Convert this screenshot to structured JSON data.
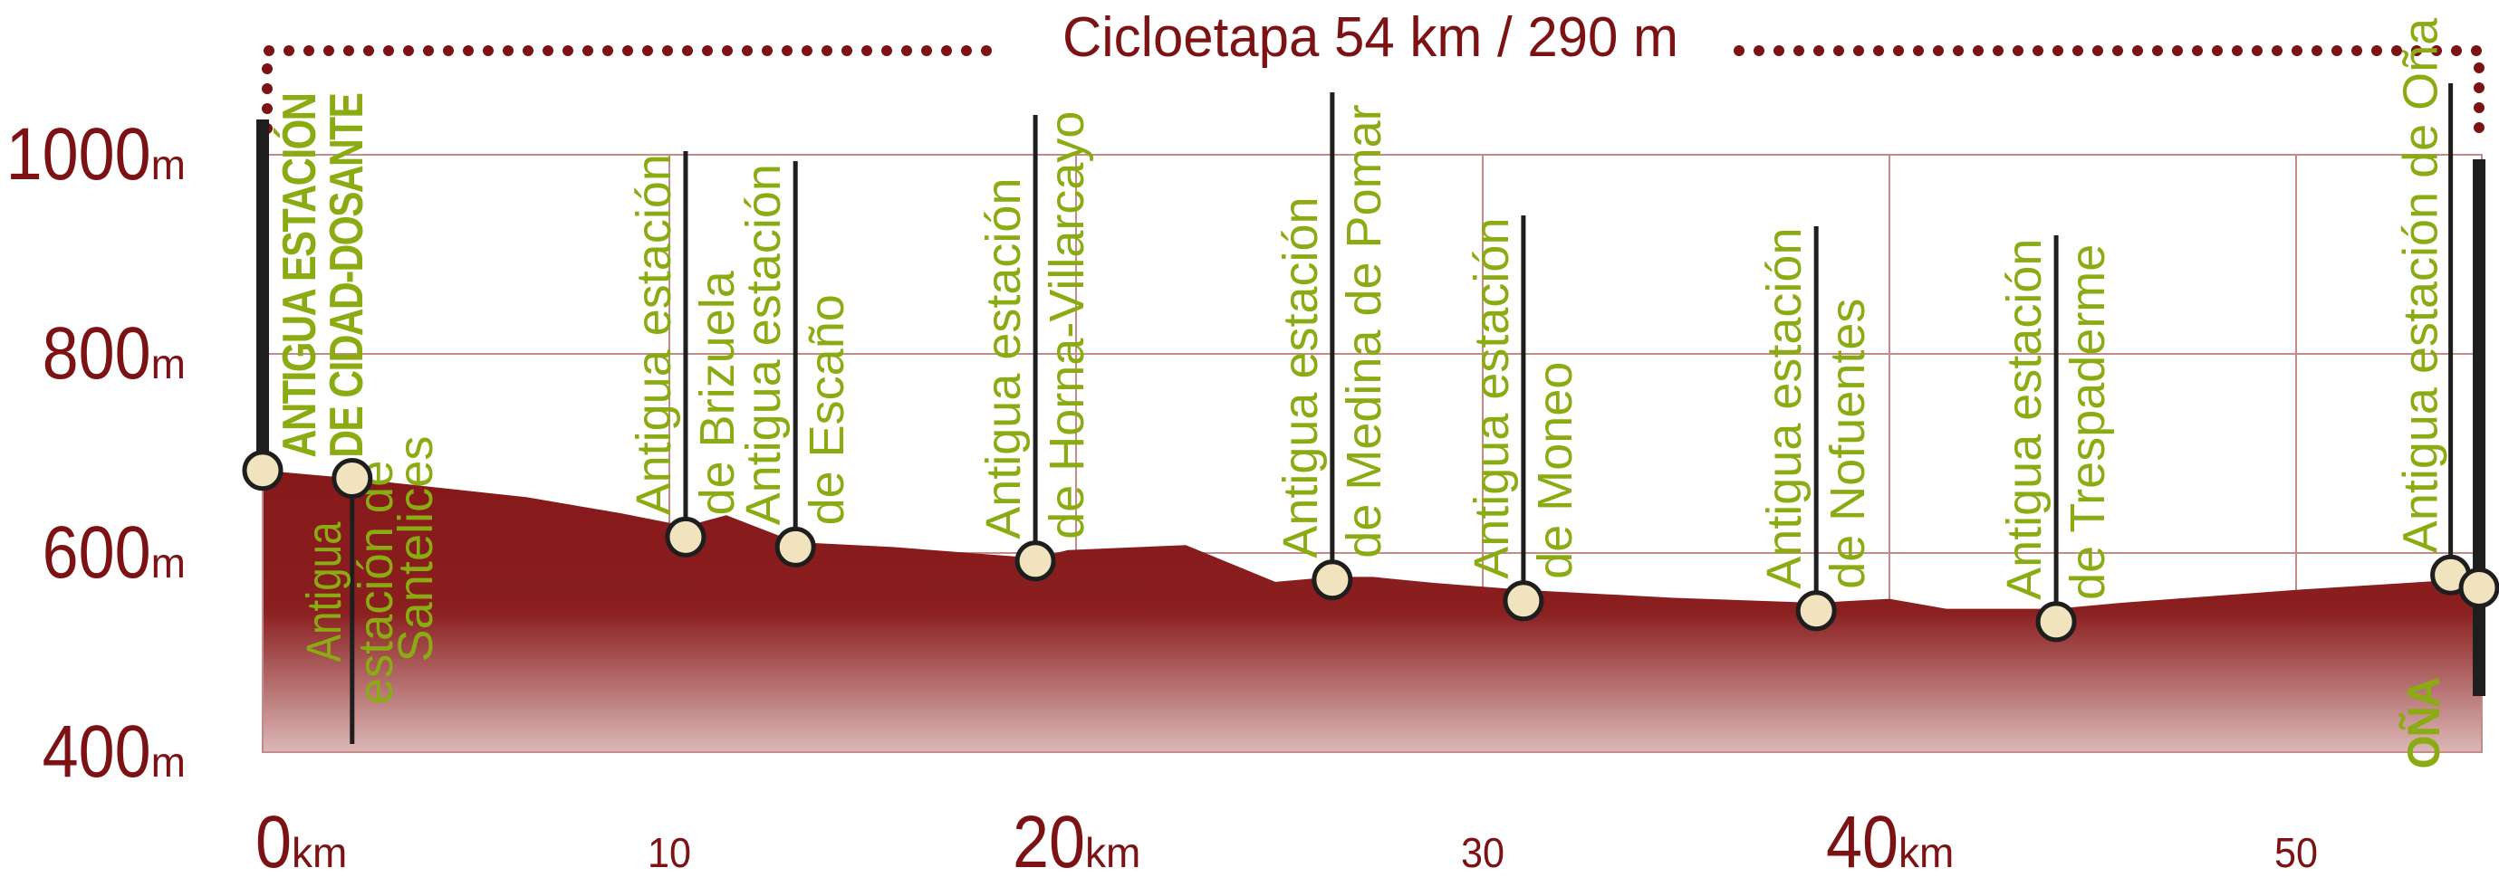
{
  "chart_data": {
    "type": "area",
    "title": "Cicloetapa 54 km / 290 m",
    "xlabel": "",
    "ylabel": "",
    "x_unit": "km",
    "y_unit": "m",
    "xlim": [
      0,
      54.6
    ],
    "ylim": [
      400,
      1000
    ],
    "grid": true,
    "legend": "none",
    "y_ticks": [
      {
        "value": 400,
        "label": "400",
        "unit": "m"
      },
      {
        "value": 600,
        "label": "600",
        "unit": "m"
      },
      {
        "value": 800,
        "label": "800",
        "unit": "m"
      },
      {
        "value": 1000,
        "label": "1000",
        "unit": "m"
      }
    ],
    "x_ticks": [
      {
        "value": 0,
        "label": "0",
        "unit": "km"
      },
      {
        "value": 10,
        "label": "10",
        "unit": ""
      },
      {
        "value": 20,
        "label": "20",
        "unit": "km"
      },
      {
        "value": 30,
        "label": "30",
        "unit": ""
      },
      {
        "value": 40,
        "label": "40",
        "unit": "km"
      },
      {
        "value": 50,
        "label": "50",
        "unit": ""
      }
    ],
    "profile": {
      "km": [
        0,
        2.2,
        6.5,
        8.8,
        10.4,
        11.4,
        13.1,
        15.5,
        19,
        19.8,
        22.7,
        24.9,
        26.3,
        27.3,
        28.8,
        31,
        34.7,
        38.2,
        40,
        41.4,
        44.1,
        45.7,
        50,
        53.9,
        54.6
      ],
      "elevation": [
        683,
        675,
        656,
        640,
        627,
        638,
        611,
        606,
        595,
        603,
        608,
        571,
        576,
        576,
        570,
        563,
        555,
        550,
        554,
        544,
        544,
        550,
        563,
        573,
        570
      ]
    },
    "waypoints": [
      {
        "km": 0,
        "elevation": 683,
        "lines": [
          "ANTIGUA ESTACIÓN",
          "DE CIDAD-DOSANTE"
        ],
        "major": true
      },
      {
        "km": 2.2,
        "elevation": 675,
        "lines": [
          "Antigua",
          "estación de",
          "Santelices"
        ],
        "major": false
      },
      {
        "km": 10.4,
        "elevation": 616,
        "lines": [
          "Antigua estación",
          "de Brizuela"
        ],
        "major": false
      },
      {
        "km": 13.1,
        "elevation": 606,
        "lines": [
          "Antigua estación",
          "de Escaño"
        ],
        "major": false
      },
      {
        "km": 19,
        "elevation": 592,
        "lines": [
          "Antigua estación",
          "de Horna-Villarcayo"
        ],
        "major": false
      },
      {
        "km": 26.3,
        "elevation": 573,
        "lines": [
          "Antigua estación",
          "de Medina de Pomar"
        ],
        "major": false
      },
      {
        "km": 31,
        "elevation": 552,
        "lines": [
          "Antigua estación",
          "de Moneo"
        ],
        "major": false
      },
      {
        "km": 38.2,
        "elevation": 542,
        "lines": [
          "Antigua estación",
          "de Nofuentes"
        ],
        "major": false
      },
      {
        "km": 44.1,
        "elevation": 531,
        "lines": [
          "Antigua estación",
          "de Trespaderme"
        ],
        "major": false
      },
      {
        "km": 53.8,
        "elevation": 578,
        "lines": [
          "Antigua estación de Oña"
        ],
        "major": false
      },
      {
        "km": 54.5,
        "elevation": 565,
        "lines": [
          "OÑA"
        ],
        "major": true
      }
    ],
    "colors": {
      "profile_fill": "#86181a",
      "profile_fade": "#dcb7b7",
      "axis_text": "#7d1214",
      "grid": "#c58a8a",
      "label_green": "#8aab12",
      "marker_fill": "#f1e3bd",
      "marker_stroke": "#1e1e1e",
      "pole": "#1e1e1e"
    }
  }
}
